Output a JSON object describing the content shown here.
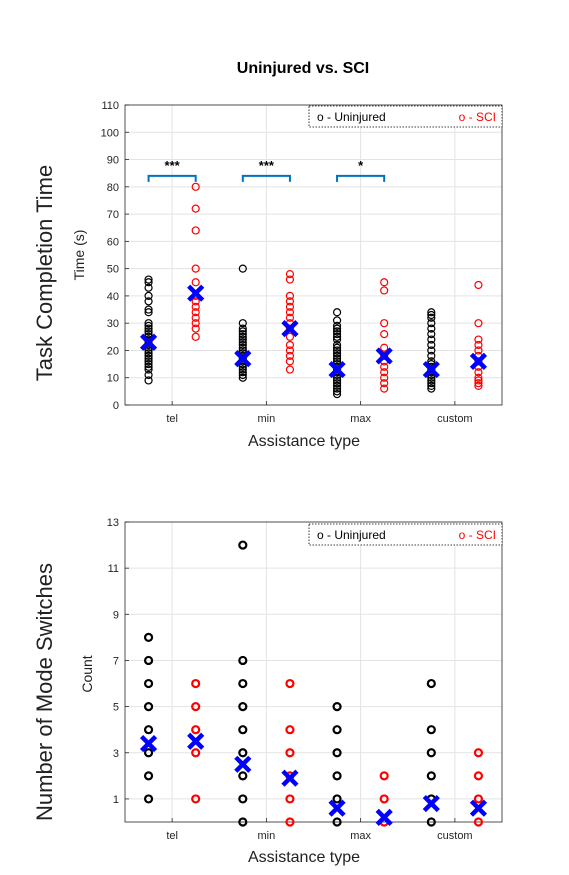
{
  "figure": {
    "title": "Uninjured vs. SCI"
  },
  "chart_data": [
    {
      "type": "scatter",
      "title": "Uninjured vs. SCI",
      "side_label": "Task Completion Time",
      "ylabel": "Time (s)",
      "xlabel": "Assistance type",
      "categories": [
        "tel",
        "min",
        "max",
        "custom"
      ],
      "ylim": [
        0,
        110
      ],
      "yticks": [
        0,
        10,
        20,
        30,
        40,
        50,
        60,
        70,
        80,
        90,
        100,
        110
      ],
      "grid": true,
      "legend": {
        "placement": "top-right",
        "entries": [
          "o - Uninjured",
          "o - SCI"
        ],
        "colors": [
          "#000000",
          "#ff0000"
        ]
      },
      "series": [
        {
          "name": "Uninjured",
          "color": "#000000",
          "offset": -0.25,
          "values": [
            [
              9,
              11,
              13,
              14,
              15,
              16,
              17,
              18,
              19,
              20,
              21,
              22,
              23,
              24,
              25,
              26,
              27,
              28,
              29,
              30,
              34,
              35,
              38,
              40,
              43,
              45,
              46
            ],
            [
              10,
              11,
              12,
              13,
              14,
              15,
              16,
              17,
              18,
              19,
              20,
              21,
              22,
              23,
              24,
              25,
              26,
              27,
              28,
              30,
              50
            ],
            [
              4,
              5,
              6,
              7,
              8,
              9,
              10,
              11,
              12,
              13,
              14,
              15,
              16,
              17,
              18,
              19,
              20,
              21,
              22,
              24,
              25,
              26,
              27,
              28,
              29,
              31,
              34
            ],
            [
              6,
              7,
              8,
              9,
              10,
              11,
              12,
              13,
              14,
              15,
              16,
              18,
              20,
              22,
              24,
              26,
              28,
              30,
              32,
              33,
              34
            ]
          ]
        },
        {
          "name": "SCI",
          "color": "#ff0000",
          "offset": 0.25,
          "values": [
            [
              25,
              28,
              30,
              32,
              34,
              36,
              38,
              40,
              45,
              50,
              64,
              72,
              80
            ],
            [
              13,
              16,
              18,
              20,
              22,
              25,
              28,
              30,
              32,
              34,
              36,
              38,
              40,
              46,
              48
            ],
            [
              6,
              8,
              10,
              12,
              14,
              16,
              18,
              21,
              26,
              30,
              42,
              45
            ],
            [
              7,
              8,
              9,
              10,
              12,
              14,
              16,
              18,
              20,
              22,
              24,
              30,
              44
            ]
          ]
        }
      ],
      "means": [
        {
          "series": "Uninjured",
          "color": "#0000ff",
          "values": [
            23,
            17,
            13,
            13
          ]
        },
        {
          "series": "SCI",
          "color": "#0000ff",
          "values": [
            41,
            28,
            18,
            16
          ]
        }
      ],
      "significance": [
        {
          "category": "tel",
          "label": "***",
          "y": 84
        },
        {
          "category": "min",
          "label": "***",
          "y": 84
        },
        {
          "category": "max",
          "label": "*",
          "y": 84
        }
      ]
    },
    {
      "type": "scatter",
      "title": "",
      "side_label": "Number of Mode Switches",
      "ylabel": "Count",
      "xlabel": "Assistance type",
      "categories": [
        "tel",
        "min",
        "max",
        "custom"
      ],
      "ylim": [
        0,
        13
      ],
      "yticks": [
        1,
        3,
        5,
        7,
        9,
        11,
        13
      ],
      "grid": true,
      "legend": {
        "placement": "top-right",
        "entries": [
          "o - Uninjured",
          "o - SCI"
        ],
        "colors": [
          "#000000",
          "#ff0000"
        ]
      },
      "series": [
        {
          "name": "Uninjured",
          "color": "#000000",
          "offset": -0.25,
          "values": [
            [
              1,
              2,
              3,
              4,
              5,
              6,
              7,
              8
            ],
            [
              0,
              1,
              2,
              3,
              4,
              5,
              6,
              7,
              12
            ],
            [
              0,
              1,
              2,
              3,
              4,
              5
            ],
            [
              0,
              1,
              2,
              3,
              4,
              6
            ]
          ]
        },
        {
          "name": "SCI",
          "color": "#ff0000",
          "offset": 0.25,
          "values": [
            [
              1,
              3,
              4,
              5,
              6
            ],
            [
              0,
              1,
              2,
              3,
              4,
              6
            ],
            [
              0,
              1,
              2
            ],
            [
              0,
              1,
              2,
              3
            ]
          ]
        }
      ],
      "means": [
        {
          "series": "Uninjured",
          "color": "#0000ff",
          "values": [
            3.4,
            2.5,
            0.6,
            0.8
          ]
        },
        {
          "series": "SCI",
          "color": "#0000ff",
          "values": [
            3.5,
            1.9,
            0.2,
            0.6
          ]
        }
      ],
      "significance": []
    }
  ]
}
